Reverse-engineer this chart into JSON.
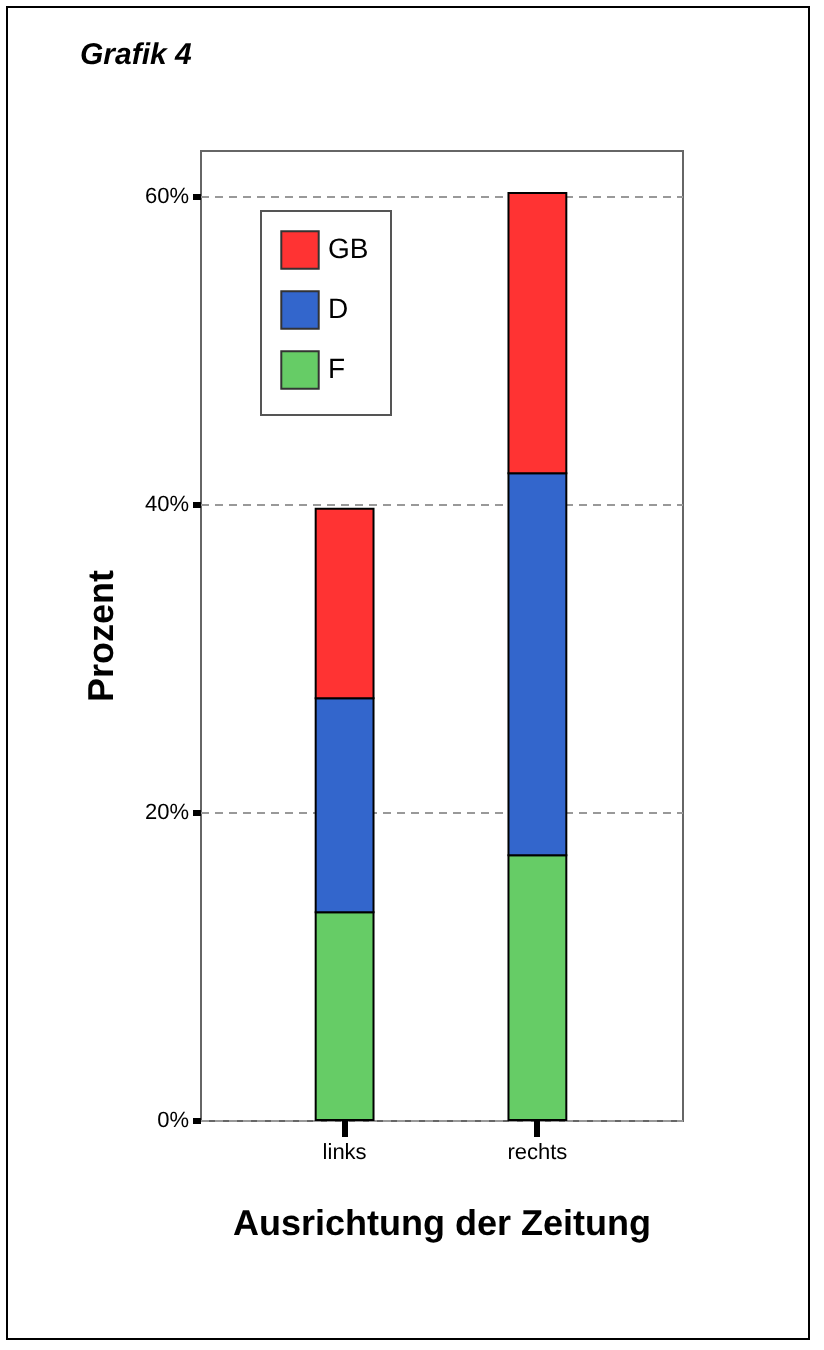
{
  "chart_data": {
    "type": "bar",
    "title": "Grafik 4",
    "xlabel": "Ausrichtung der Zeitung",
    "ylabel": "Prozent",
    "categories": [
      "links",
      "rechts"
    ],
    "stacked": true,
    "series": [
      {
        "name": "F",
        "color": "#66cc66",
        "values": [
          13.5,
          17.2
        ]
      },
      {
        "name": "D",
        "color": "#3366cc",
        "values": [
          13.9,
          24.8
        ]
      },
      {
        "name": "GB",
        "color": "#ff3333",
        "values": [
          12.3,
          18.2
        ]
      }
    ],
    "ylim": [
      0,
      63
    ],
    "yticks": [
      {
        "value": 0,
        "label": "0%"
      },
      {
        "value": 20,
        "label": "20%"
      },
      {
        "value": 40,
        "label": "40%"
      },
      {
        "value": 60,
        "label": "60%"
      }
    ],
    "grid": "y",
    "legend": "top left"
  }
}
